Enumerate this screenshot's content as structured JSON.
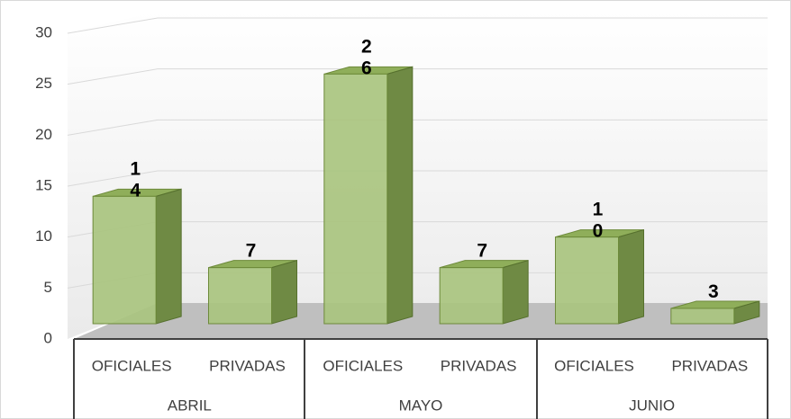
{
  "chart_data": {
    "type": "bar3d",
    "categories": [
      "OFICIALES",
      "PRIVADAS",
      "OFICIALES",
      "PRIVADAS",
      "OFICIALES",
      "PRIVADAS"
    ],
    "groups": [
      "ABRIL",
      "MAYO",
      "JUNIO"
    ],
    "values": [
      14,
      7,
      26,
      7,
      10,
      3
    ],
    "color": "#a9c47f",
    "ylim": [
      0,
      30
    ],
    "yticks": [
      0,
      5,
      10,
      15,
      20,
      25,
      30
    ],
    "grid": true
  }
}
